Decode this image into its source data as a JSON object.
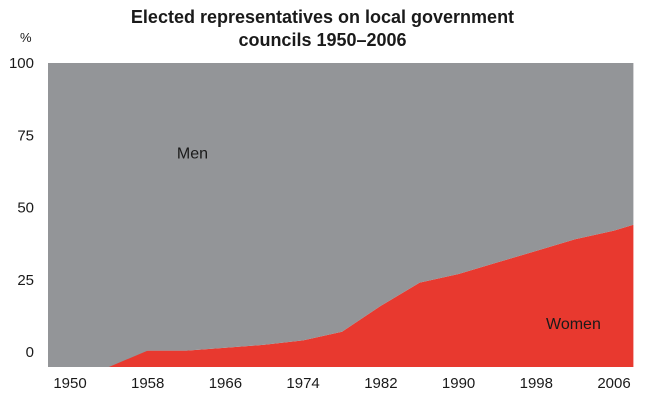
{
  "chart_data": {
    "type": "area",
    "stacked": true,
    "title": [
      "Elected representatives on local government",
      "councils 1950–2006"
    ],
    "ylabel": "%",
    "ylim": [
      0,
      100
    ],
    "yticks": [
      0,
      25,
      50,
      75,
      100
    ],
    "xlim": [
      1950,
      2008
    ],
    "xticks": [
      "1950",
      "1958",
      "1966",
      "1974",
      "1982",
      "1990",
      "1998",
      "2006"
    ],
    "x": [
      1946,
      1954,
      1958,
      1962,
      1966,
      1970,
      1974,
      1978,
      1982,
      1986,
      1990,
      1994,
      1998,
      2002,
      2006,
      2008
    ],
    "series": [
      {
        "name": "Women",
        "color": "#e8392f",
        "values": [
          0,
          0,
          0.5,
          0.5,
          1.5,
          2.5,
          4,
          7,
          16,
          24,
          27,
          31,
          35,
          39,
          42,
          44
        ]
      },
      {
        "name": "Men",
        "color": "#939598",
        "values": [
          100,
          100,
          99.5,
          99.5,
          98.5,
          97.5,
          96,
          93,
          84,
          76,
          73,
          69,
          65,
          61,
          58,
          56
        ]
      }
    ],
    "annotations": [
      {
        "text": "Men",
        "series": "Men",
        "x": 1961,
        "y": 67
      },
      {
        "text": "Women",
        "series": "Women",
        "x": 1999,
        "y": 8
      }
    ],
    "grid": false,
    "legend": "none"
  }
}
